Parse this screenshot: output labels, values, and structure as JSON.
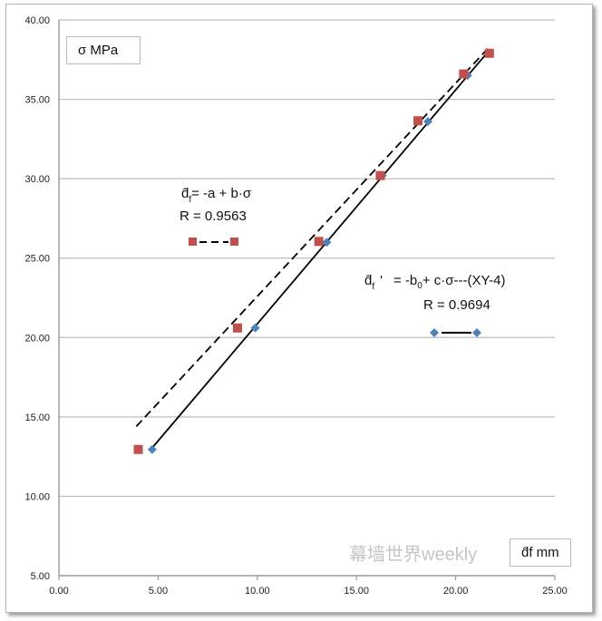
{
  "chart_data": {
    "type": "scatter",
    "xlim": [
      0,
      25
    ],
    "ylim": [
      5,
      40
    ],
    "xticks": [
      "0.00",
      "5.00",
      "10.00",
      "15.00",
      "20.00",
      "25.00"
    ],
    "yticks": [
      "5.00",
      "10.00",
      "15.00",
      "20.00",
      "25.00",
      "30.00",
      "35.00",
      "40.00"
    ],
    "ylabel": "σ  MPa",
    "xlabel": "d̂f  mm",
    "grid": "horizontal",
    "series": [
      {
        "name": "d̂f = -a + b·σ",
        "r_label": "R = 0.9563",
        "marker": "square",
        "color": "#c0504d",
        "line": "dashed",
        "x": [
          4.0,
          9.0,
          13.1,
          16.2,
          18.1,
          20.4,
          21.7
        ],
        "y": [
          12.95,
          20.6,
          26.05,
          30.2,
          33.65,
          36.6,
          37.9
        ],
        "fit": [
          [
            3.9,
            14.4
          ],
          [
            21.7,
            38.3
          ]
        ]
      },
      {
        "name": "d̂f '  = -b0+ c·σ---(XY-4)",
        "r_label": "R = 0.9694",
        "marker": "diamond",
        "color": "#4f81bd",
        "line": "solid",
        "x": [
          4.7,
          9.9,
          13.5,
          16.3,
          18.6,
          20.6,
          21.7
        ],
        "y": [
          12.95,
          20.6,
          26.0,
          30.2,
          33.6,
          36.5,
          37.9
        ],
        "fit": [
          [
            4.6,
            12.9
          ],
          [
            21.7,
            38.1
          ]
        ]
      }
    ]
  },
  "legend": {
    "eq1_hat": "d̂",
    "eq1_sub": "f",
    "eq1_rest": "= -a + b·σ",
    "r1": "R = 0.9563",
    "eq2_hat": "d̂",
    "eq2_sub": "f",
    "eq2_prime": "'",
    "eq2_rest_a": "= -b",
    "eq2_rest_sub": "0",
    "eq2_rest_b": "+ c·σ---(XY-4)",
    "r2": "R = 0.9694"
  },
  "watermark": "幕墙世界weekly"
}
